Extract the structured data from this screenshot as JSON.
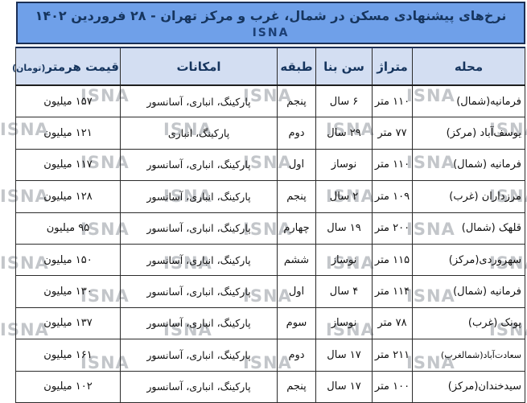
{
  "title": "نرخ‌های پیشنهادی مسکن در شمال، غرب و مرکز تهران - ۲۸ فروردین ۱۴۰۲",
  "agency": "ISNA",
  "watermark": "ISNA",
  "colors": {
    "band_blue": "#6fa0e9",
    "header_pale_blue": "#d3def2",
    "navy_text": "#16355e",
    "border_dark": "#2b2b2b",
    "watermark_gray": "#c3c6ca"
  },
  "chart_data": {
    "type": "table",
    "title": "نرخ‌های پیشنهادی مسکن در شمال، غرب و مرکز تهران - ۲۸ فروردین ۱۴۰۲",
    "headers": {
      "neighborhood": "محله",
      "area": "متراژ",
      "age": "سن بنا",
      "floor": "طبقه",
      "amenities": "امکانات",
      "price": "قیمت هرمتر",
      "price_unit": "(تومان)"
    },
    "rows": [
      {
        "neighborhood": "فرمانیه(شمال)",
        "area": "۱۱۰ متر",
        "age": "۶ سال",
        "floor": "پنجم",
        "amenities": "پارکینگ، انباری، آسانسور",
        "price": "۱۵۷ میلیون"
      },
      {
        "neighborhood": "یوسف‌آباد (مرکز)",
        "area": "۷۷ متر",
        "age": "۲۹ سال",
        "floor": "دوم",
        "amenities": "پارکینگ، انباری",
        "price": "۱۲۱ میلیون"
      },
      {
        "neighborhood": "فرمانیه (شمال)",
        "area": "۱۱۰ متر",
        "age": "نوساز",
        "floor": "اول",
        "amenities": "پارکینگ، انباری، آسانسور",
        "price": "۱۱۷ میلیون"
      },
      {
        "neighborhood": "مرزداران (غرب)",
        "area": "۱۰۹ متر",
        "age": "۲ سال",
        "floor": "پنجم",
        "amenities": "پارکینگ، انباری، آسانسور",
        "price": "۱۲۸ میلیون"
      },
      {
        "neighborhood": "قلهک (شمال)",
        "area": "۲۰۰ متر",
        "age": "۱۹ سال",
        "floor": "چهارم",
        "amenities": "پارکینگ، انباری، آسانسور",
        "price": "۹۵ میلیون"
      },
      {
        "neighborhood": "سهروردی(مرکز)",
        "area": "۱۱۵ متر",
        "age": "نوساز",
        "floor": "ششم",
        "amenities": "پارکینگ، انباری، آسانسور",
        "price": "۱۵۰ میلیون"
      },
      {
        "neighborhood": "فرمانیه (شمال)",
        "area": "۱۱۴ متر",
        "age": "۴ سال",
        "floor": "اول",
        "amenities": "پارکینگ، انباری، آسانسور",
        "price": "۱۳۰ میلیون"
      },
      {
        "neighborhood": "پونک (غرب)",
        "area": "۷۸ متر",
        "age": "نوساز",
        "floor": "سوم",
        "amenities": "پارکینگ، انباری، آسانسور",
        "price": "۱۳۷ میلیون"
      },
      {
        "neighborhood": "سعادت‌آباد(شمالغرب)",
        "area": "۲۱۱ متر",
        "age": "۱۷ سال",
        "floor": "دوم",
        "amenities": "پارکینگ، انباری، آسانسور",
        "price": "۱۶۱ میلیون"
      },
      {
        "neighborhood": "سیدخندان(مرکز)",
        "area": "۱۰۰ متر",
        "age": "۱۷ سال",
        "floor": "پنجم",
        "amenities": "پارکینگ، انباری، آسانسور",
        "price": "۱۰۲ میلیون"
      }
    ]
  }
}
